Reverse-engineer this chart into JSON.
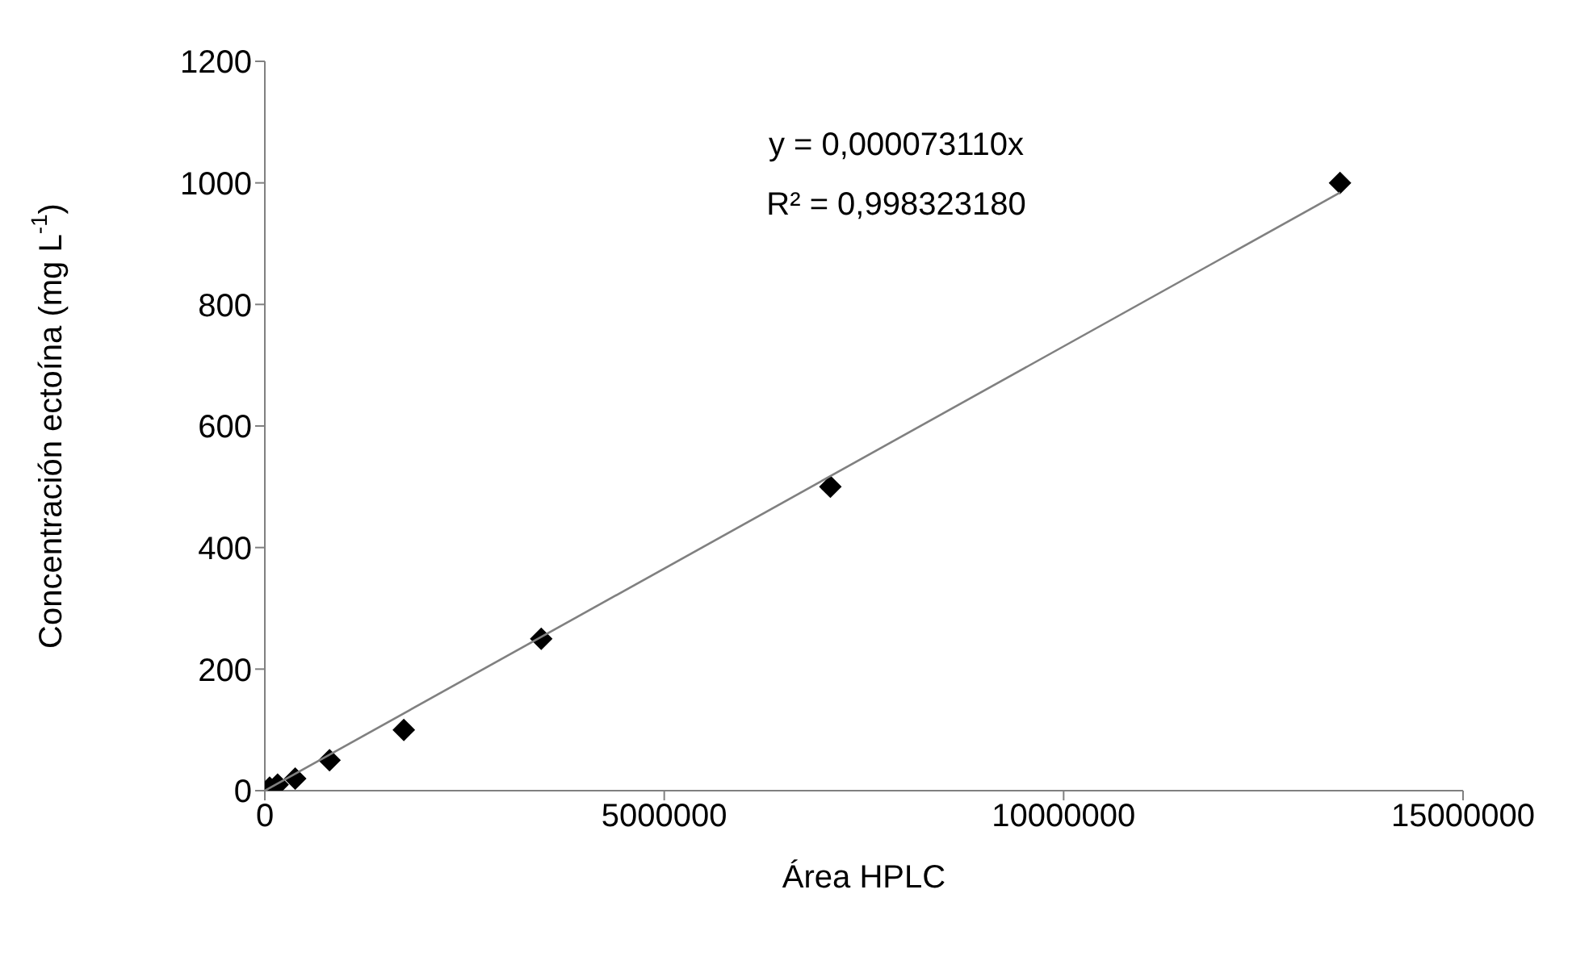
{
  "chart_data": {
    "type": "scatter",
    "xlabel": "Área HPLC",
    "ylabel": "Concentración ectoína (mg L$^{-1}$)",
    "annotations": [
      "y = 0,000073110x",
      "R² = 0,998323180"
    ],
    "xlim": [
      0,
      15000000
    ],
    "xticks": [
      0,
      5000000,
      10000000,
      15000000
    ],
    "ylim": [
      0,
      1200
    ],
    "yticks": [
      0,
      200,
      400,
      600,
      800,
      1000,
      1200
    ],
    "marker": "diamond",
    "series": [
      {
        "color": "#000000",
        "x": [
          60000,
          160000,
          380000,
          810000,
          1740000,
          3460000,
          7080000,
          13460000
        ],
        "values": [
          5,
          10,
          20,
          50,
          100,
          250,
          500,
          1000
        ]
      },
      {
        "type": "line",
        "color": "#808080",
        "x": [
          0,
          13460000
        ],
        "values": [
          0,
          984
        ],
        "marker": "none",
        "line_style": "solid"
      }
    ]
  }
}
